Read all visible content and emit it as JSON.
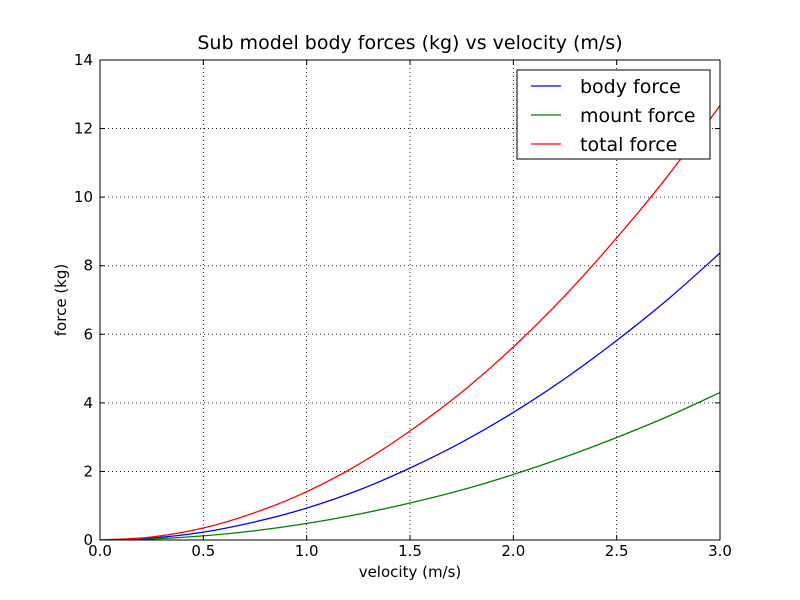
{
  "chart_data": {
    "type": "line",
    "title": "Sub model body forces (kg) vs velocity (m/s)",
    "xlabel": "velocity (m/s)",
    "ylabel": "force (kg)",
    "xlim": [
      0.0,
      3.0
    ],
    "ylim": [
      0,
      14
    ],
    "x_ticks": [
      "0.0",
      "0.5",
      "1.0",
      "1.5",
      "2.0",
      "2.5",
      "3.0"
    ],
    "y_ticks": [
      "0",
      "2",
      "4",
      "6",
      "8",
      "10",
      "12",
      "14"
    ],
    "grid": true,
    "legend_position": "top-right",
    "series": [
      {
        "name": "body force",
        "color": "#0000ff",
        "x": [
          0.0,
          0.25,
          0.5,
          0.75,
          1.0,
          1.25,
          1.5,
          1.75,
          2.0,
          2.25,
          2.5,
          2.75,
          3.0
        ],
        "y": [
          0.0,
          0.058,
          0.23,
          0.53,
          0.93,
          1.45,
          2.1,
          2.85,
          3.72,
          4.71,
          5.82,
          7.03,
          8.37
        ]
      },
      {
        "name": "mount force",
        "color": "#008000",
        "x": [
          0.0,
          0.25,
          0.5,
          0.75,
          1.0,
          1.25,
          1.5,
          1.75,
          2.0,
          2.25,
          2.5,
          2.75,
          3.0
        ],
        "y": [
          0.0,
          0.03,
          0.12,
          0.27,
          0.48,
          0.75,
          1.08,
          1.46,
          1.91,
          2.42,
          2.99,
          3.61,
          4.3
        ]
      },
      {
        "name": "total force",
        "color": "#ff0000",
        "x": [
          0.0,
          0.25,
          0.5,
          0.75,
          1.0,
          1.25,
          1.5,
          1.75,
          2.0,
          2.25,
          2.5,
          2.75,
          3.0
        ],
        "y": [
          0.0,
          0.088,
          0.35,
          0.8,
          1.41,
          2.2,
          3.18,
          4.31,
          5.63,
          7.13,
          8.81,
          10.64,
          12.67
        ]
      }
    ]
  }
}
